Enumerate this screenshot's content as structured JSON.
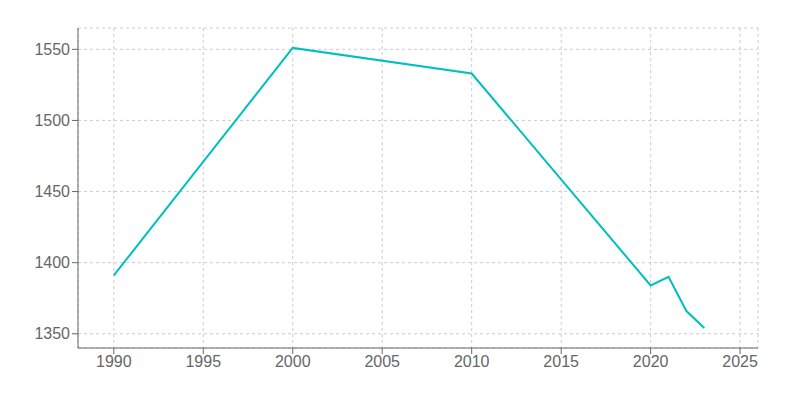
{
  "chart_data": {
    "type": "line",
    "x": [
      1990,
      2000,
      2010,
      2020,
      2021,
      2022,
      2023
    ],
    "values": [
      1391,
      1551,
      1533,
      1384,
      1390,
      1366,
      1354
    ],
    "color": "#00BFBF",
    "xlim": [
      1988,
      2026
    ],
    "ylim": [
      1340,
      1565
    ],
    "xticks": [
      1990,
      1995,
      2000,
      2005,
      2010,
      2015,
      2020,
      2025
    ],
    "yticks": [
      1350,
      1400,
      1450,
      1500,
      1550
    ],
    "grid": true
  }
}
